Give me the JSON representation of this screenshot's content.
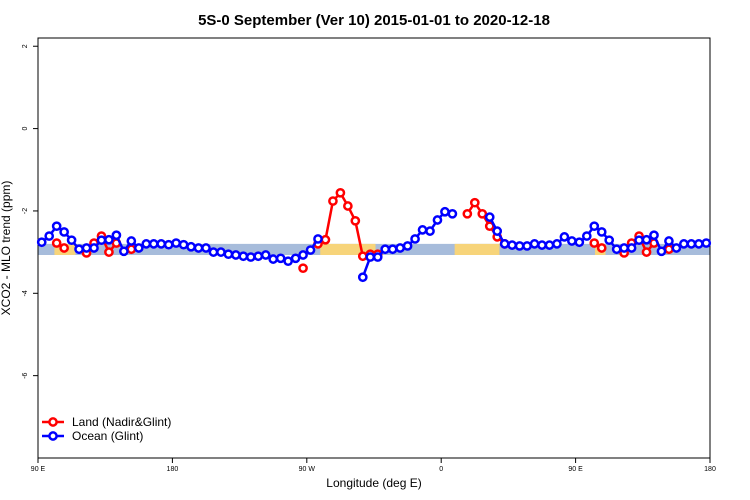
{
  "chart_data": {
    "type": "line",
    "title": "5S-0 September (Ver 10)   2015-01-01 to 2020-12-18",
    "x_label": "Longitude (deg E)",
    "y_label": "XCO2 - MLO trend (ppm)",
    "xlim": [
      90,
      540
    ],
    "xticks": [
      {
        "value": 90,
        "label": "90 E"
      },
      {
        "value": 180,
        "label": "180"
      },
      {
        "value": 270,
        "label": "90 W"
      },
      {
        "value": 360,
        "label": "0"
      },
      {
        "value": 450,
        "label": "90 E"
      },
      {
        "value": 540,
        "label": "180"
      }
    ],
    "ylim": [
      -8,
      2.2
    ],
    "yticks": [
      2,
      0,
      -2,
      -4,
      -6
    ],
    "band": {
      "ylim": [
        -3.07,
        -2.8
      ],
      "color": "#a7bcdb"
    },
    "land_spans": {
      "color": "#f7d47a",
      "spans": [
        [
          101,
          115
        ],
        [
          279,
          316
        ],
        [
          369,
          399
        ],
        [
          463,
          470
        ]
      ]
    },
    "legend": "bottom-left",
    "x": [
      92.5,
      97.5,
      102.5,
      107.5,
      112.5,
      117.5,
      122.5,
      127.5,
      132.5,
      137.5,
      142.5,
      147.5,
      152.5,
      157.5,
      162.5,
      167.5,
      172.5,
      177.5,
      182.5,
      187.5,
      192.5,
      197.5,
      202.5,
      207.5,
      212.5,
      217.5,
      222.5,
      227.5,
      232.5,
      237.5,
      242.5,
      247.5,
      252.5,
      257.5,
      262.5,
      267.5,
      272.5,
      277.5,
      282.5,
      287.5,
      292.5,
      297.5,
      302.5,
      307.5,
      312.5,
      317.5,
      322.5,
      327.5,
      332.5,
      337.5,
      342.5,
      347.5,
      352.5,
      357.5,
      362.5,
      367.5,
      372.5,
      377.5,
      382.5,
      387.5,
      392.5,
      397.5,
      402.5,
      407.5,
      412.5,
      417.5,
      422.5,
      427.5,
      432.5,
      437.5,
      442.5,
      447.5,
      452.5,
      457.5,
      462.5,
      467.5,
      472.5,
      477.5,
      482.5,
      487.5,
      492.5,
      497.5,
      502.5,
      507.5,
      512.5,
      517.5,
      522.5,
      527.5,
      532.5,
      537.5
    ],
    "series": [
      {
        "name": "Land (Nadir&Glint)",
        "color": "#ff0000",
        "values": [
          null,
          null,
          -2.78,
          -2.9,
          null,
          null,
          -3.02,
          -2.78,
          -2.61,
          -3.0,
          -2.78,
          null,
          -2.93,
          null,
          null,
          null,
          null,
          null,
          null,
          null,
          null,
          null,
          null,
          null,
          null,
          null,
          null,
          null,
          null,
          null,
          null,
          null,
          null,
          null,
          null,
          -3.39,
          null,
          -2.8,
          -2.7,
          -1.76,
          -1.56,
          -1.88,
          -2.24,
          -3.1,
          -3.05,
          -3.05,
          null,
          null,
          null,
          null,
          null,
          null,
          null,
          null,
          null,
          null,
          null,
          -2.07,
          -1.8,
          -2.07,
          -2.37,
          -2.63,
          -2.8,
          null,
          null,
          null,
          null,
          null,
          null,
          null,
          null,
          null,
          null,
          null,
          -2.78,
          -2.9,
          null,
          null,
          -3.02,
          -2.78,
          -2.61,
          -3.0,
          -2.78,
          null,
          -2.93,
          null,
          null,
          null,
          null,
          null
        ]
      },
      {
        "name": "Ocean (Glint)",
        "color": "#0000ff",
        "values": [
          -2.76,
          -2.61,
          -2.37,
          -2.51,
          -2.71,
          -2.93,
          -2.9,
          -2.9,
          -2.71,
          -2.7,
          -2.59,
          -2.98,
          -2.73,
          -2.9,
          -2.8,
          -2.8,
          -2.8,
          -2.82,
          -2.78,
          -2.82,
          -2.87,
          -2.9,
          -2.9,
          -3.0,
          -3.0,
          -3.05,
          -3.07,
          -3.1,
          -3.12,
          -3.1,
          -3.07,
          -3.17,
          -3.15,
          -3.22,
          -3.15,
          -3.07,
          -2.95,
          -2.68,
          null,
          null,
          null,
          null,
          null,
          -3.61,
          -3.12,
          -3.12,
          -2.93,
          -2.93,
          -2.9,
          -2.85,
          -2.68,
          -2.46,
          -2.49,
          -2.22,
          -2.02,
          -2.07,
          null,
          null,
          null,
          null,
          -2.15,
          -2.49,
          -2.8,
          -2.83,
          -2.85,
          -2.85,
          -2.8,
          -2.83,
          -2.83,
          -2.8,
          -2.63,
          -2.73,
          -2.76,
          -2.61,
          -2.37,
          -2.51,
          -2.71,
          -2.93,
          -2.9,
          -2.9,
          -2.71,
          -2.7,
          -2.59,
          -2.98,
          -2.73,
          -2.9,
          -2.8,
          -2.8,
          -2.8,
          -2.78
        ]
      }
    ]
  }
}
